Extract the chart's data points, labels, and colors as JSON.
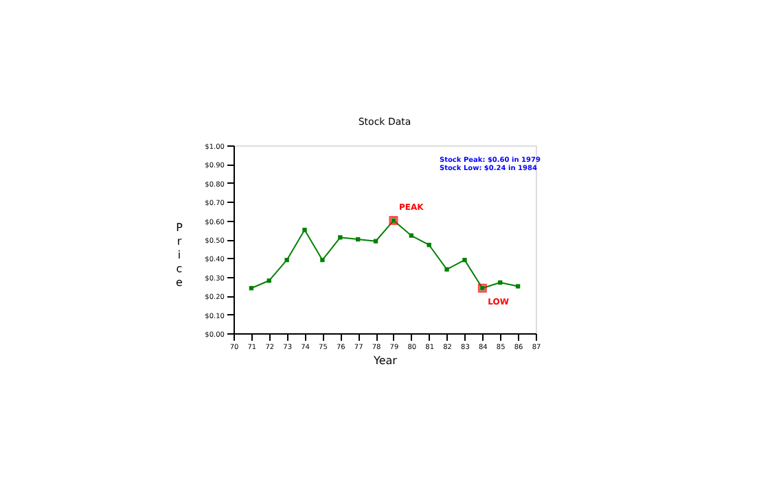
{
  "chart_data": {
    "type": "line",
    "title": "Stock Data",
    "xlabel": "Year",
    "ylabel": "Price",
    "x": [
      71,
      72,
      73,
      74,
      75,
      76,
      77,
      78,
      79,
      80,
      81,
      82,
      83,
      84,
      85,
      86
    ],
    "series": [
      {
        "color": "#008000",
        "marker": "square",
        "values": [
          0.24,
          0.28,
          0.39,
          0.55,
          0.39,
          0.51,
          0.5,
          0.49,
          0.6,
          0.52,
          0.47,
          0.34,
          0.39,
          0.24,
          0.27,
          0.25
        ]
      },
      {
        "type": "scatter",
        "color": "#ff0000",
        "marker": "square",
        "x": [
          79,
          84
        ],
        "values": [
          0.6,
          0.24
        ]
      }
    ],
    "annotations": [
      {
        "text": "PEAK",
        "x": 79,
        "y": 0.6
      },
      {
        "text": "LOW",
        "x": 84,
        "y": 0.24
      },
      "Stock Peak: $0.60 in 1979",
      "Stock Low: $0.24 in 1984"
    ],
    "xlim": [
      70,
      87
    ],
    "xticks": [
      70,
      71,
      72,
      73,
      74,
      75,
      76,
      77,
      78,
      79,
      80,
      81,
      82,
      83,
      84,
      85,
      86,
      87
    ],
    "ylim": [
      0,
      1
    ],
    "yticks": [
      {
        "value": 0,
        "label": "$0.00"
      },
      {
        "value": 0.1,
        "label": "$0.10"
      },
      {
        "value": 0.2,
        "label": "$0.20"
      },
      {
        "value": 0.3,
        "label": "$0.30"
      },
      {
        "value": 0.4,
        "label": "$0.40"
      },
      {
        "value": 0.5,
        "label": "$0.50"
      },
      {
        "value": 0.6,
        "label": "$0.60"
      },
      {
        "value": 0.7,
        "label": "$0.70"
      },
      {
        "value": 0.8,
        "label": "$0.80"
      },
      {
        "value": 0.9,
        "label": "$0.90"
      },
      {
        "value": 1.0,
        "label": "$1.00"
      }
    ],
    "grid": false,
    "line_style": "solid"
  }
}
